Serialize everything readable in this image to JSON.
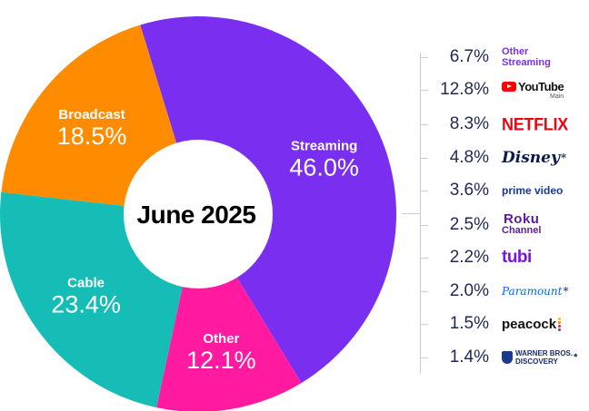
{
  "chart_data": {
    "type": "pie",
    "title": "June 2025",
    "slices": [
      {
        "name": "Streaming",
        "value": 46.0,
        "label": "46.0%",
        "color": "#7a2ff0"
      },
      {
        "name": "Other",
        "value": 12.1,
        "label": "12.1%",
        "color": "#ff1aa0"
      },
      {
        "name": "Cable",
        "value": 23.4,
        "label": "23.4%",
        "color": "#16bdb6"
      },
      {
        "name": "Broadcast",
        "value": 18.5,
        "label": "18.5%",
        "color": "#ff8c00"
      }
    ],
    "breakdown_of": "Streaming",
    "breakdown": [
      {
        "name": "Other Streaming",
        "value": 6.7,
        "label": "6.7%",
        "icon": "other-streaming-wordmark"
      },
      {
        "name": "YouTube",
        "sub": "Main",
        "value": 12.8,
        "label": "12.8%",
        "icon": "youtube-logo"
      },
      {
        "name": "NETFLIX",
        "value": 8.3,
        "label": "8.3%",
        "icon": "netflix-logo"
      },
      {
        "name": "Disney",
        "asterisk": "*",
        "value": 4.8,
        "label": "4.8%",
        "icon": "disney-logo"
      },
      {
        "name": "prime video",
        "value": 3.6,
        "label": "3.6%",
        "icon": "prime-video-logo"
      },
      {
        "name": "Roku Channel",
        "value": 2.5,
        "label": "2.5%",
        "icon": "roku-channel-logo"
      },
      {
        "name": "tubi",
        "value": 2.2,
        "label": "2.2%",
        "icon": "tubi-logo"
      },
      {
        "name": "Paramount",
        "asterisk": "*",
        "value": 2.0,
        "label": "2.0%",
        "icon": "paramount-logo"
      },
      {
        "name": "peacock",
        "value": 1.5,
        "label": "1.5%",
        "icon": "peacock-logo"
      },
      {
        "name": "WARNER BROS. DISCOVERY",
        "asterisk": "*",
        "value": 1.4,
        "label": "1.4%",
        "icon": "warner-bros-discovery-logo"
      }
    ]
  },
  "brand_text": {
    "other_streaming_1": "Other",
    "other_streaming_2": "Streaming",
    "youtube": "YouTube",
    "youtube_sub": "Main",
    "netflix": "NETFLIX",
    "disney": "Disney",
    "prime": "prime video",
    "roku_1": "Roku",
    "roku_2": "Channel",
    "tubi": "tubi",
    "paramount": "Paramount",
    "peacock": "peacock",
    "wbd_1": "WARNER BROS.",
    "wbd_2": "DISCOVERY",
    "asterisk": "*"
  },
  "peacock_colors": [
    "#f5c400",
    "#f08a00",
    "#e0245e",
    "#6b3fa0",
    "#0088d1",
    "#00a651"
  ]
}
